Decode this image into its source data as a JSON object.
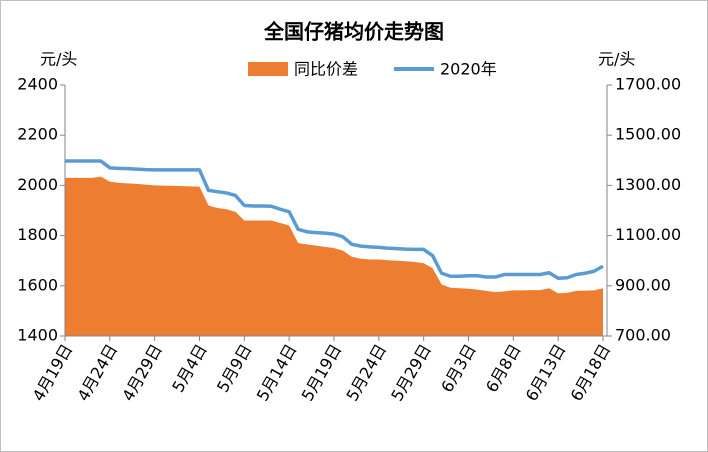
{
  "chart_data": {
    "type": "area_line",
    "title": "全国仔猪均价走势图",
    "y_label": "元/头",
    "y2_label": "元/头",
    "categories": [
      "4月19日",
      null,
      null,
      null,
      null,
      "4月24日",
      null,
      null,
      null,
      null,
      "4月29日",
      null,
      null,
      null,
      null,
      "5月4日",
      null,
      null,
      null,
      null,
      "5月9日",
      null,
      null,
      null,
      null,
      "5月14日",
      null,
      null,
      null,
      null,
      "5月19日",
      null,
      null,
      null,
      null,
      "5月24日",
      null,
      null,
      null,
      null,
      "5月29日",
      null,
      null,
      null,
      null,
      "6月3日",
      null,
      null,
      null,
      null,
      "6月8日",
      null,
      null,
      null,
      null,
      "6月13日",
      null,
      null,
      null,
      null,
      "6月18日"
    ],
    "series": [
      {
        "name": "同比价差",
        "color": "#ed7d31",
        "axis": "y",
        "values": [
          2030,
          2030,
          2030,
          2030,
          2035,
          2015,
          2010,
          2008,
          2006,
          2003,
          2000,
          1999,
          1998,
          1997,
          1996,
          1995,
          1920,
          1910,
          1905,
          1895,
          1860,
          1860,
          1860,
          1860,
          1850,
          1840,
          1770,
          1765,
          1760,
          1755,
          1750,
          1740,
          1715,
          1708,
          1705,
          1705,
          1702,
          1700,
          1698,
          1695,
          1690,
          1670,
          1605,
          1592,
          1590,
          1588,
          1585,
          1580,
          1575,
          1578,
          1582,
          1582,
          1583,
          1583,
          1590,
          1570,
          1572,
          1580,
          1581,
          1582,
          1590
        ]
      },
      {
        "name": "2020年",
        "color": "#5b9bd5",
        "axis": "y2",
        "values": [
          1397,
          1397,
          1397,
          1397,
          1397,
          1370,
          1368,
          1367,
          1365,
          1363,
          1362,
          1362,
          1362,
          1362,
          1362,
          1362,
          1280,
          1275,
          1270,
          1260,
          1220,
          1218,
          1218,
          1217,
          1205,
          1195,
          1125,
          1115,
          1112,
          1110,
          1106,
          1095,
          1065,
          1058,
          1055,
          1053,
          1050,
          1048,
          1046,
          1045,
          1045,
          1020,
          950,
          938,
          938,
          940,
          940,
          935,
          935,
          945,
          945,
          945,
          945,
          945,
          952,
          930,
          932,
          945,
          950,
          958,
          978
        ]
      }
    ],
    "ylim": [
      1400,
      2400
    ],
    "yticks": [
      1400,
      1600,
      1800,
      2000,
      2200,
      2400
    ],
    "y2lim": [
      700,
      1700
    ],
    "y2ticks": [
      {
        "value": 700,
        "label": "700.00"
      },
      {
        "value": 900,
        "label": "900.00"
      },
      {
        "value": 1100,
        "label": "1100.00"
      },
      {
        "value": 1300,
        "label": "1300.00"
      },
      {
        "value": 1500,
        "label": "1500.00"
      },
      {
        "value": 1700,
        "label": "1700.00"
      }
    ],
    "legend": "top"
  }
}
